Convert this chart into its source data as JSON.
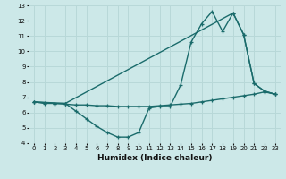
{
  "xlabel": "Humidex (Indice chaleur)",
  "bg_color": "#cce8e8",
  "grid_color": "#b8d8d8",
  "line_color": "#1a6b6b",
  "xlim": [
    -0.5,
    23.5
  ],
  "ylim": [
    4,
    13
  ],
  "xticks": [
    0,
    1,
    2,
    3,
    4,
    5,
    6,
    7,
    8,
    9,
    10,
    11,
    12,
    13,
    14,
    15,
    16,
    17,
    18,
    19,
    20,
    21,
    22,
    23
  ],
  "yticks": [
    4,
    5,
    6,
    7,
    8,
    9,
    10,
    11,
    12,
    13
  ],
  "line1_x": [
    0,
    1,
    2,
    3,
    4,
    5,
    6,
    7,
    8,
    9,
    10,
    11,
    12,
    13,
    14,
    15,
    16,
    17,
    18,
    19,
    20,
    21,
    22,
    23
  ],
  "line1_y": [
    6.7,
    6.6,
    6.6,
    6.6,
    6.1,
    5.6,
    5.1,
    4.7,
    4.4,
    4.4,
    4.7,
    6.3,
    6.4,
    6.4,
    7.8,
    10.6,
    11.8,
    12.6,
    11.3,
    12.5,
    11.1,
    7.9,
    7.4,
    7.2
  ],
  "line2_x": [
    0,
    1,
    2,
    3,
    4,
    5,
    6,
    7,
    8,
    9,
    10,
    11,
    12,
    13,
    14,
    15,
    16,
    17,
    18,
    19,
    20,
    21,
    22,
    23
  ],
  "line2_y": [
    6.7,
    6.65,
    6.6,
    6.55,
    6.5,
    6.5,
    6.45,
    6.45,
    6.4,
    6.4,
    6.4,
    6.4,
    6.45,
    6.5,
    6.55,
    6.6,
    6.7,
    6.8,
    6.9,
    7.0,
    7.1,
    7.2,
    7.35,
    7.2
  ],
  "line3_x": [
    0,
    3,
    19,
    20,
    21,
    22,
    23
  ],
  "line3_y": [
    6.7,
    6.6,
    12.5,
    11.1,
    7.9,
    7.4,
    7.2
  ]
}
